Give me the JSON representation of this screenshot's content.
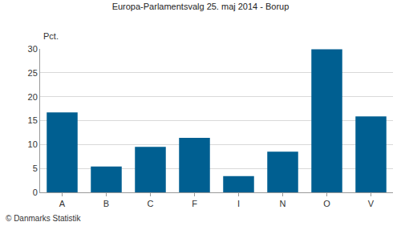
{
  "chart_data": {
    "type": "bar",
    "title": "Europa-Parlamentsvalg 25. maj 2014 - Borup",
    "y_label": "Pct.",
    "categories": [
      "A",
      "B",
      "C",
      "F",
      "I",
      "N",
      "O",
      "V"
    ],
    "values": [
      16.7,
      5.4,
      9.5,
      11.4,
      3.4,
      8.5,
      29.9,
      15.9
    ],
    "color": "#005f91",
    "ylim": [
      0,
      30
    ],
    "yticks": [
      0,
      5,
      10,
      15,
      20,
      25,
      30
    ],
    "grid": true,
    "annotations": [
      "© Danmarks Statistik"
    ]
  }
}
